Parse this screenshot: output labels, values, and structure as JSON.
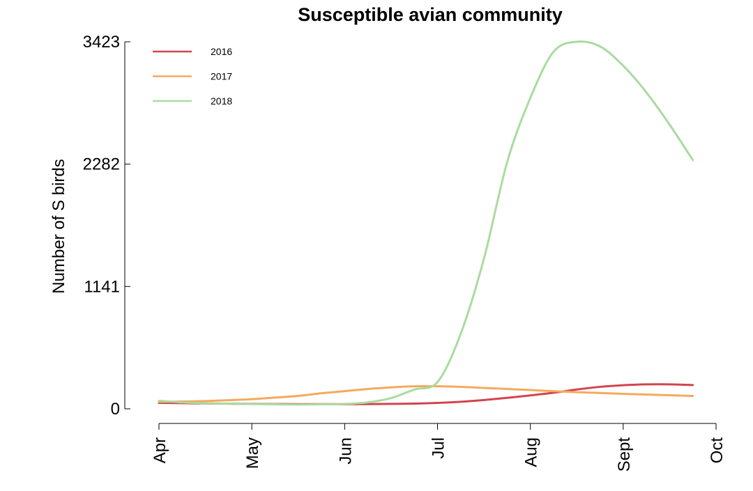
{
  "chart_data": {
    "type": "line",
    "title": "Susceptible avian community",
    "xlabel": "",
    "ylabel": "Number of S birds",
    "x_ticks": [
      "Apr",
      "May",
      "Jun",
      "Jul",
      "Aug",
      "Sept",
      "Oct"
    ],
    "y_ticks": [
      0,
      1141,
      2282,
      3423
    ],
    "ylim": [
      0,
      3423
    ],
    "x": [
      0,
      0.25,
      0.5,
      0.75,
      1,
      1.25,
      1.5,
      1.75,
      2,
      2.25,
      2.5,
      2.75,
      3,
      3.25,
      3.5,
      3.75,
      4,
      4.25,
      4.5,
      4.75,
      5,
      5.25,
      5.5,
      5.75
    ],
    "series": [
      {
        "name": "2016",
        "color": "#d1444f",
        "values": [
          55,
          53,
          50,
          48,
          46,
          45,
          44,
          44,
          43,
          44,
          46,
          49,
          55,
          66,
          82,
          102,
          125,
          150,
          180,
          205,
          220,
          228,
          228,
          222
        ]
      },
      {
        "name": "2017",
        "color": "#f5a95e",
        "values": [
          65,
          68,
          72,
          80,
          90,
          105,
          120,
          145,
          165,
          185,
          200,
          210,
          210,
          205,
          195,
          185,
          175,
          165,
          155,
          148,
          140,
          133,
          127,
          120
        ]
      },
      {
        "name": "2018",
        "color": "#a9dba0",
        "values": [
          75,
          60,
          52,
          48,
          45,
          42,
          40,
          42,
          45,
          60,
          100,
          180,
          250,
          700,
          1400,
          2300,
          2900,
          3330,
          3423,
          3380,
          3200,
          2950,
          2650,
          2320
        ]
      }
    ],
    "legend_position": "top-left",
    "grid": false
  }
}
